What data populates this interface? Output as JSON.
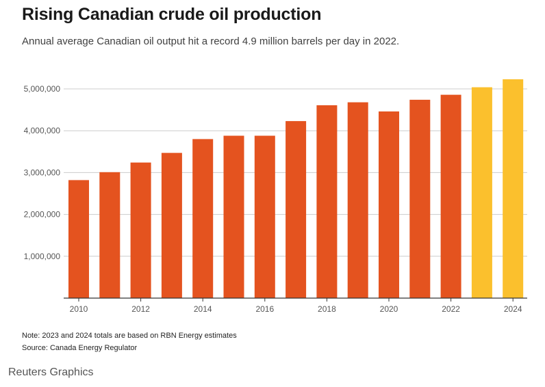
{
  "chart_data": {
    "type": "bar",
    "title": "Rising Canadian crude oil production",
    "subtitle": "Annual average Canadian oil output hit a record 4.9 million barrels per day in 2022.",
    "categories": [
      "2010",
      "2011",
      "2012",
      "2013",
      "2014",
      "2015",
      "2016",
      "2017",
      "2018",
      "2019",
      "2020",
      "2021",
      "2022",
      "2023",
      "2024"
    ],
    "values": [
      2820000,
      3010000,
      3240000,
      3470000,
      3800000,
      3880000,
      3880000,
      4230000,
      4610000,
      4680000,
      4460000,
      4740000,
      4860000,
      5040000,
      5230000
    ],
    "estimated": [
      false,
      false,
      false,
      false,
      false,
      false,
      false,
      false,
      false,
      false,
      false,
      false,
      false,
      true,
      true
    ],
    "x_tick_labels": [
      "2010",
      "2012",
      "2014",
      "2016",
      "2018",
      "2020",
      "2022",
      "2024"
    ],
    "y_ticks": [
      1000000,
      2000000,
      3000000,
      4000000,
      5000000
    ],
    "y_tick_labels": [
      "1,000,000",
      "2,000,000",
      "3,000,000",
      "4,000,000",
      "5,000,000"
    ],
    "ylim": [
      0,
      5500000
    ],
    "xlabel": "",
    "ylabel": "",
    "grid": true,
    "colors": {
      "actual": "#e4531f",
      "estimate": "#fbc02d",
      "grid": "#cccccc",
      "axis": "#333333"
    }
  },
  "notes": {
    "line1": "Note: 2023 and 2024 totals are based on RBN Energy estimates",
    "line2": "Source: Canada Energy Regulator"
  },
  "brand": "Reuters Graphics"
}
